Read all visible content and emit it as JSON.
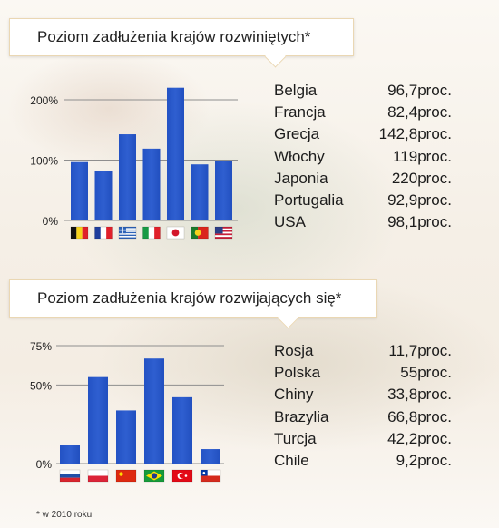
{
  "chart_data": [
    {
      "type": "bar",
      "title": "Poziom zadłużenia krajów rozwiniętych*",
      "categories": [
        "Belgia",
        "Francja",
        "Grecja",
        "Włochy",
        "Japonia",
        "Portugalia",
        "USA"
      ],
      "values": [
        96.7,
        82.4,
        142.8,
        119,
        220,
        92.9,
        98.1
      ],
      "value_labels": [
        "96,7proc.",
        "82,4proc.",
        "142,8proc.",
        "119proc.",
        "220proc.",
        "92,9proc.",
        "98,1proc."
      ],
      "flags": [
        "belgium-flag",
        "france-flag",
        "greece-flag",
        "italy-flag",
        "japan-flag",
        "portugal-flag",
        "usa-flag"
      ],
      "yticks": [
        0,
        100,
        200
      ],
      "ytick_labels": [
        "0%",
        "100%",
        "200%"
      ],
      "ylim": [
        0,
        200
      ],
      "xlabel": "",
      "ylabel": "",
      "grid": true,
      "bar_color": "#2f5fd0"
    },
    {
      "type": "bar",
      "title": "Poziom zadłużenia krajów rozwijających się*",
      "categories": [
        "Rosja",
        "Polska",
        "Chiny",
        "Brazylia",
        "Turcja",
        "Chile"
      ],
      "values": [
        11.7,
        55,
        33.8,
        66.8,
        42.2,
        9.2
      ],
      "value_labels": [
        "11,7proc.",
        "55proc.",
        "33,8proc.",
        "66,8proc.",
        "42,2proc.",
        "9,2proc."
      ],
      "flags": [
        "russia-flag",
        "poland-flag",
        "china-flag",
        "brazil-flag",
        "turkey-flag",
        "chile-flag"
      ],
      "yticks": [
        0,
        50,
        75
      ],
      "ytick_labels": [
        "0%",
        "50%",
        "75%"
      ],
      "ylim": [
        0,
        75
      ],
      "xlabel": "",
      "ylabel": "",
      "grid": true,
      "bar_color": "#2f5fd0"
    }
  ],
  "footnote": "* w 2010 roku"
}
